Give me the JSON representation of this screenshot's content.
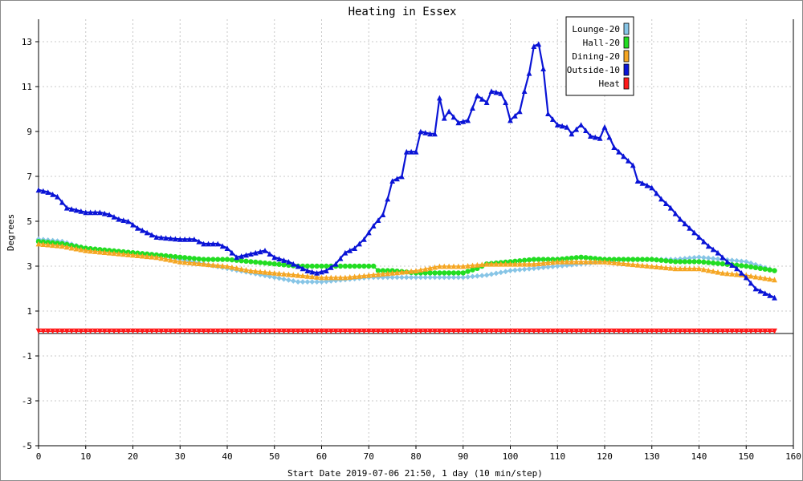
{
  "chart_data": {
    "type": "line",
    "title": "Heating in Essex",
    "xlabel": "Start Date 2019-07-06 21:50, 1 day (10 min/step)",
    "ylabel": "Degrees",
    "xlim": [
      0,
      160
    ],
    "ylim": [
      -5,
      14
    ],
    "x_ticks": [
      0,
      10,
      20,
      30,
      40,
      50,
      60,
      70,
      80,
      90,
      100,
      110,
      120,
      130,
      140,
      150,
      160
    ],
    "y_ticks": [
      -5,
      -3,
      -1,
      1,
      3,
      5,
      7,
      9,
      11,
      13
    ],
    "grid": true,
    "legend_position": "top-right",
    "series": [
      {
        "name": "Lounge-20",
        "color": "#87c5e6",
        "marker": "diamond",
        "points": [
          [
            0,
            4.2
          ],
          [
            5,
            4.1
          ],
          [
            10,
            3.8
          ],
          [
            15,
            3.7
          ],
          [
            20,
            3.6
          ],
          [
            25,
            3.5
          ],
          [
            30,
            3.3
          ],
          [
            35,
            3.1
          ],
          [
            40,
            2.9
          ],
          [
            45,
            2.7
          ],
          [
            50,
            2.5
          ],
          [
            55,
            2.3
          ],
          [
            60,
            2.3
          ],
          [
            65,
            2.4
          ],
          [
            70,
            2.5
          ],
          [
            75,
            2.5
          ],
          [
            80,
            2.5
          ],
          [
            85,
            2.5
          ],
          [
            90,
            2.5
          ],
          [
            95,
            2.6
          ],
          [
            100,
            2.8
          ],
          [
            105,
            2.9
          ],
          [
            110,
            3.0
          ],
          [
            115,
            3.1
          ],
          [
            120,
            3.2
          ],
          [
            125,
            3.3
          ],
          [
            130,
            3.3
          ],
          [
            135,
            3.3
          ],
          [
            140,
            3.4
          ],
          [
            145,
            3.3
          ],
          [
            150,
            3.2
          ],
          [
            153,
            3.0
          ],
          [
            156,
            2.8
          ]
        ]
      },
      {
        "name": "Hall-20",
        "color": "#22dd22",
        "marker": "circle",
        "points": [
          [
            0,
            4.1
          ],
          [
            5,
            4.0
          ],
          [
            10,
            3.8
          ],
          [
            15,
            3.7
          ],
          [
            20,
            3.6
          ],
          [
            25,
            3.5
          ],
          [
            30,
            3.4
          ],
          [
            35,
            3.3
          ],
          [
            40,
            3.3
          ],
          [
            45,
            3.2
          ],
          [
            50,
            3.1
          ],
          [
            55,
            3.0
          ],
          [
            60,
            3.0
          ],
          [
            65,
            3.0
          ],
          [
            70,
            3.0
          ],
          [
            71,
            3.0
          ],
          [
            72,
            2.8
          ],
          [
            75,
            2.8
          ],
          [
            80,
            2.7
          ],
          [
            85,
            2.7
          ],
          [
            90,
            2.7
          ],
          [
            93,
            2.9
          ],
          [
            95,
            3.1
          ],
          [
            100,
            3.2
          ],
          [
            105,
            3.3
          ],
          [
            110,
            3.3
          ],
          [
            115,
            3.4
          ],
          [
            120,
            3.3
          ],
          [
            125,
            3.3
          ],
          [
            130,
            3.3
          ],
          [
            135,
            3.2
          ],
          [
            140,
            3.2
          ],
          [
            145,
            3.1
          ],
          [
            150,
            3.0
          ],
          [
            153,
            2.9
          ],
          [
            156,
            2.8
          ]
        ]
      },
      {
        "name": "Dining-20",
        "color": "#f5a623",
        "marker": "triangle",
        "points": [
          [
            0,
            4.0
          ],
          [
            5,
            3.9
          ],
          [
            10,
            3.7
          ],
          [
            15,
            3.6
          ],
          [
            20,
            3.5
          ],
          [
            25,
            3.4
          ],
          [
            30,
            3.2
          ],
          [
            35,
            3.1
          ],
          [
            40,
            3.0
          ],
          [
            45,
            2.8
          ],
          [
            50,
            2.7
          ],
          [
            55,
            2.6
          ],
          [
            60,
            2.5
          ],
          [
            65,
            2.5
          ],
          [
            70,
            2.6
          ],
          [
            75,
            2.7
          ],
          [
            80,
            2.8
          ],
          [
            85,
            3.0
          ],
          [
            90,
            3.0
          ],
          [
            95,
            3.1
          ],
          [
            100,
            3.1
          ],
          [
            105,
            3.1
          ],
          [
            110,
            3.2
          ],
          [
            115,
            3.2
          ],
          [
            120,
            3.2
          ],
          [
            125,
            3.1
          ],
          [
            130,
            3.0
          ],
          [
            135,
            2.9
          ],
          [
            140,
            2.9
          ],
          [
            145,
            2.7
          ],
          [
            150,
            2.6
          ],
          [
            153,
            2.5
          ],
          [
            156,
            2.4
          ]
        ]
      },
      {
        "name": "Outside-10",
        "color": "#0a14d6",
        "marker": "triangle",
        "points": [
          [
            0,
            6.4
          ],
          [
            2,
            6.3
          ],
          [
            4,
            6.1
          ],
          [
            6,
            5.6
          ],
          [
            8,
            5.5
          ],
          [
            10,
            5.4
          ],
          [
            13,
            5.4
          ],
          [
            15,
            5.3
          ],
          [
            17,
            5.1
          ],
          [
            19,
            5.0
          ],
          [
            21,
            4.7
          ],
          [
            23,
            4.5
          ],
          [
            25,
            4.3
          ],
          [
            30,
            4.2
          ],
          [
            33,
            4.2
          ],
          [
            35,
            4.0
          ],
          [
            38,
            4.0
          ],
          [
            40,
            3.8
          ],
          [
            42,
            3.4
          ],
          [
            44,
            3.5
          ],
          [
            46,
            3.6
          ],
          [
            48,
            3.7
          ],
          [
            50,
            3.4
          ],
          [
            53,
            3.2
          ],
          [
            55,
            3.0
          ],
          [
            57,
            2.8
          ],
          [
            59,
            2.7
          ],
          [
            61,
            2.8
          ],
          [
            63,
            3.1
          ],
          [
            65,
            3.6
          ],
          [
            67,
            3.8
          ],
          [
            69,
            4.2
          ],
          [
            71,
            4.8
          ],
          [
            73,
            5.3
          ],
          [
            74,
            6.0
          ],
          [
            75,
            6.8
          ],
          [
            77,
            7.0
          ],
          [
            78,
            8.1
          ],
          [
            80,
            8.1
          ],
          [
            81,
            9.0
          ],
          [
            83,
            8.9
          ],
          [
            84,
            8.9
          ],
          [
            85,
            10.5
          ],
          [
            86,
            9.6
          ],
          [
            87,
            9.9
          ],
          [
            89,
            9.4
          ],
          [
            91,
            9.5
          ],
          [
            93,
            10.6
          ],
          [
            95,
            10.3
          ],
          [
            96,
            10.8
          ],
          [
            98,
            10.7
          ],
          [
            99,
            10.3
          ],
          [
            100,
            9.5
          ],
          [
            102,
            9.9
          ],
          [
            103,
            10.8
          ],
          [
            104,
            11.6
          ],
          [
            105,
            12.8
          ],
          [
            106,
            12.9
          ],
          [
            107,
            11.8
          ],
          [
            108,
            9.8
          ],
          [
            110,
            9.3
          ],
          [
            112,
            9.2
          ],
          [
            113,
            8.9
          ],
          [
            115,
            9.3
          ],
          [
            117,
            8.8
          ],
          [
            119,
            8.7
          ],
          [
            120,
            9.2
          ],
          [
            122,
            8.3
          ],
          [
            124,
            7.9
          ],
          [
            126,
            7.5
          ],
          [
            127,
            6.8
          ],
          [
            130,
            6.5
          ],
          [
            132,
            6.0
          ],
          [
            134,
            5.6
          ],
          [
            136,
            5.1
          ],
          [
            138,
            4.7
          ],
          [
            140,
            4.3
          ],
          [
            142,
            3.9
          ],
          [
            144,
            3.6
          ],
          [
            146,
            3.2
          ],
          [
            148,
            2.9
          ],
          [
            150,
            2.5
          ],
          [
            152,
            2.0
          ],
          [
            154,
            1.8
          ],
          [
            156,
            1.6
          ]
        ]
      },
      {
        "name": "Heat",
        "color": "#ff1a1a",
        "marker": "triangle-down",
        "points": [
          [
            0,
            0.1
          ],
          [
            156,
            0.1
          ]
        ]
      }
    ]
  }
}
